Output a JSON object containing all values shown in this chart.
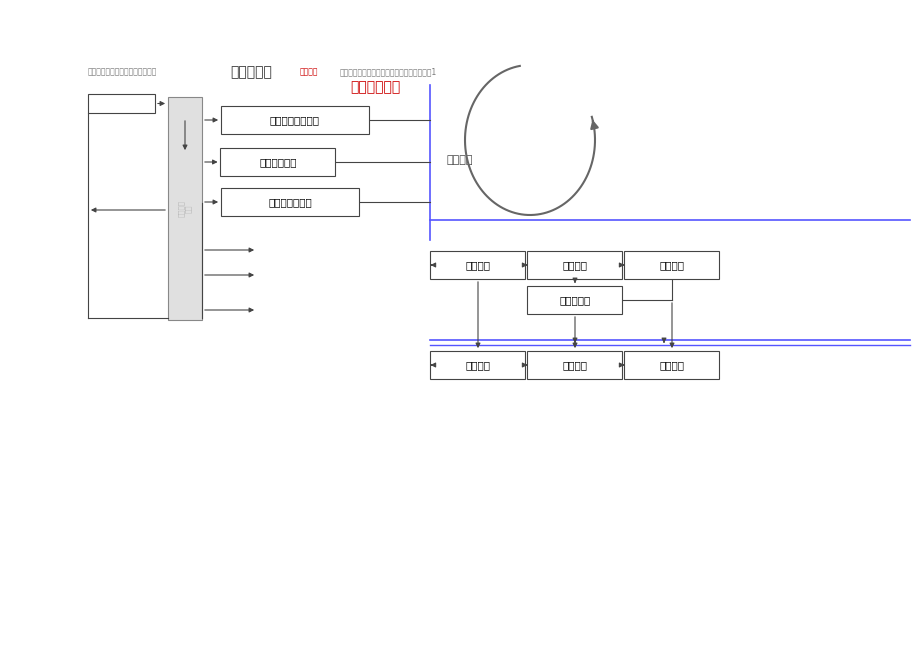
{
  "title_text1": "施工图预制作业指导书编议工方案",
  "title_text2": "豊各类栗翼",
  "title_text3": "车间制作",
  "title_text4": "安装作业指导书体搭建检验交付土建面即内容1",
  "section_title": "施工准备阶段",
  "resource_label": "资源采购",
  "bg_color": "#ffffff",
  "blue_color": "#5555ff",
  "dark_color": "#444444",
  "red_color": "#cc0000",
  "magenta_color": "#cc44cc",
  "col_label": "施工准备阶段",
  "left_boxes": [
    "编制人力资源计划",
    "编制材料计划",
    "编制工机具计划"
  ],
  "top_boxes": [
    "壁板预制",
    "拱顶预制",
    "底板预制"
  ],
  "mid_box": "塔身砼浇筑",
  "bot_boxes": [
    "壁板安装",
    "拱顶安装",
    "底板安装"
  ]
}
